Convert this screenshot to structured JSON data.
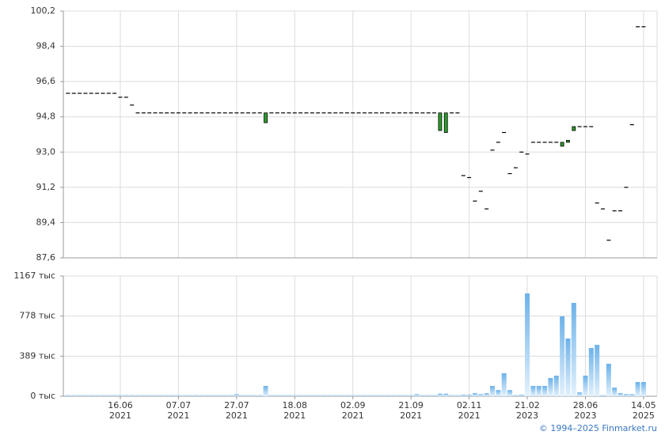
{
  "chart_data": [
    {
      "type": "candlestick",
      "open": [
        96,
        96,
        96,
        96,
        96,
        96,
        96,
        96,
        96,
        95.8,
        95.8,
        95.4,
        95,
        95,
        95,
        95,
        95,
        95,
        95,
        95,
        95,
        95,
        95,
        95,
        95,
        95,
        95,
        95,
        95,
        95,
        95,
        95,
        95,
        95,
        94.5,
        95,
        95,
        95,
        95,
        95,
        95,
        95,
        95,
        95,
        95,
        95,
        95,
        95,
        95,
        95,
        95,
        95,
        95,
        95,
        95,
        95,
        95,
        95,
        95,
        95,
        95,
        95,
        95,
        95,
        94.1,
        94,
        95,
        95,
        91.8,
        91.7,
        90.5,
        91,
        90.1,
        93.1,
        93.5,
        94,
        91.9,
        92.2,
        93,
        92.9,
        93.5,
        93.5,
        93.5,
        93.5,
        93.5,
        93.3,
        93.5,
        94.1,
        94.3,
        94.3,
        94.3,
        90.4,
        90.1,
        88.5,
        90,
        90,
        91.2,
        94.4,
        99.4,
        99.4
      ],
      "close": [
        96,
        96,
        96,
        96,
        96,
        96,
        96,
        96,
        96,
        95.8,
        95.8,
        95.4,
        95,
        95,
        95,
        95,
        95,
        95,
        95,
        95,
        95,
        95,
        95,
        95,
        95,
        95,
        95,
        95,
        95,
        95,
        95,
        95,
        95,
        95,
        95,
        95,
        95,
        95,
        95,
        95,
        95,
        95,
        95,
        95,
        95,
        95,
        95,
        95,
        95,
        95,
        95,
        95,
        95,
        95,
        95,
        95,
        95,
        95,
        95,
        95,
        95,
        95,
        95,
        95,
        95,
        95,
        95,
        95,
        91.8,
        91.7,
        90.5,
        91,
        90.1,
        93.1,
        93.5,
        94,
        91.9,
        92.2,
        93,
        92.9,
        93.5,
        93.5,
        93.5,
        93.5,
        93.5,
        93.5,
        93.6,
        94.3,
        94.3,
        94.3,
        94.3,
        90.4,
        90.1,
        88.5,
        90,
        90,
        91.2,
        94.4,
        99.4,
        99.4
      ],
      "up_color": "#2ca02c",
      "down_color": "#d62728",
      "ylim": [
        87.6,
        100.2
      ],
      "yticks": [
        {
          "value": 87.6,
          "label": "87,6"
        },
        {
          "value": 89.4,
          "label": "89,4"
        },
        {
          "value": 91.2,
          "label": "91,2"
        },
        {
          "value": 93.0,
          "label": "93,0"
        },
        {
          "value": 94.8,
          "label": "94,8"
        },
        {
          "value": 96.6,
          "label": "96,6"
        },
        {
          "value": 98.4,
          "label": "98,4"
        },
        {
          "value": 100.2,
          "label": "100,2"
        }
      ],
      "grid": true
    },
    {
      "type": "bar",
      "categories": [
        null,
        null,
        null,
        null,
        null,
        null,
        null,
        null,
        null,
        "16.06 2021",
        null,
        null,
        null,
        null,
        null,
        null,
        null,
        null,
        null,
        "07.07 2021",
        null,
        null,
        null,
        null,
        null,
        null,
        null,
        null,
        null,
        "27.07 2021",
        null,
        null,
        null,
        null,
        null,
        null,
        null,
        null,
        null,
        "18.08 2021",
        null,
        null,
        null,
        null,
        null,
        null,
        null,
        null,
        null,
        "02.09 2021",
        null,
        null,
        null,
        null,
        null,
        null,
        null,
        null,
        null,
        "21.09 2021",
        null,
        null,
        null,
        null,
        null,
        null,
        null,
        null,
        null,
        "02.11 2021",
        null,
        null,
        null,
        null,
        null,
        null,
        null,
        null,
        null,
        "21.02 2023",
        null,
        null,
        null,
        null,
        null,
        null,
        null,
        null,
        null,
        "28.06 2023",
        null,
        null,
        null,
        null,
        null,
        null,
        null,
        null,
        null,
        "14.05 2025"
      ],
      "values": [
        10,
        10,
        10,
        10,
        10,
        10,
        10,
        10,
        10,
        10,
        10,
        10,
        10,
        10,
        10,
        10,
        10,
        10,
        10,
        10,
        10,
        10,
        10,
        10,
        10,
        10,
        10,
        10,
        10,
        20,
        10,
        10,
        10,
        10,
        100,
        10,
        10,
        10,
        10,
        10,
        10,
        10,
        10,
        10,
        10,
        10,
        10,
        10,
        10,
        10,
        10,
        10,
        10,
        10,
        10,
        10,
        10,
        10,
        10,
        10,
        20,
        10,
        10,
        10,
        25,
        25,
        10,
        10,
        15,
        15,
        30,
        20,
        30,
        100,
        60,
        223,
        60,
        10,
        15,
        998,
        100,
        100,
        100,
        177,
        200,
        776,
        561,
        906,
        38,
        200,
        468,
        499,
        10,
        315,
        84,
        30,
        20,
        20,
        138,
        138
      ],
      "color": "#6cb2ea",
      "ylim": [
        0,
        1167
      ],
      "yticks": [
        {
          "value": 0,
          "label": "0 тыс"
        },
        {
          "value": 389,
          "label": "389 тыс"
        },
        {
          "value": 778,
          "label": "778 тыс"
        },
        {
          "value": 1167,
          "label": "1167 тыс"
        }
      ],
      "grid": true
    }
  ],
  "footer": "© 1994–2025 Finmarket.ru"
}
